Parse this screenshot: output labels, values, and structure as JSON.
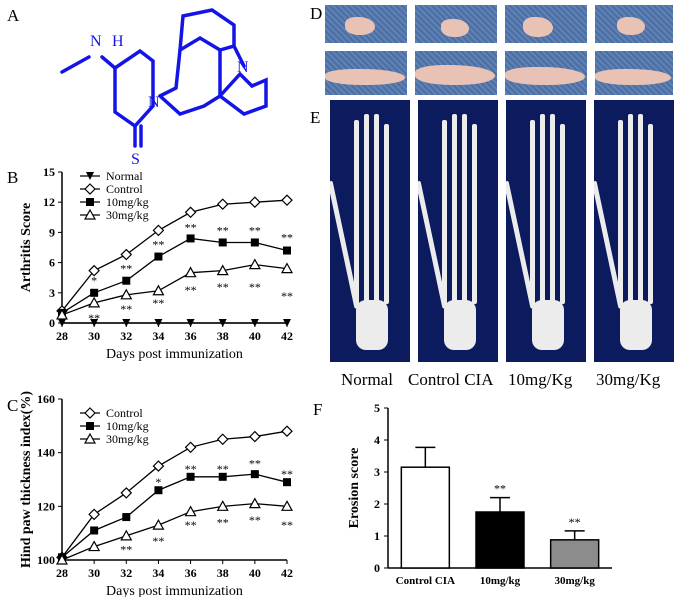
{
  "panels": {
    "A": "A",
    "B": "B",
    "C": "C",
    "D": "D",
    "E": "E",
    "F": "F"
  },
  "molecule": {
    "nh": "N",
    "h": "H",
    "n1": "N",
    "n2": "N",
    "s": "S"
  },
  "colors": {
    "bond": "#1414e6",
    "xray_bg": "#0c1a5e",
    "paw_bg": "#4a6fa6",
    "cia_bar": "#ffffff",
    "mid_bar": "#000000",
    "high_bar": "#8c8c8c"
  },
  "xray_labels": [
    "Normal",
    "Control CIA",
    "10mg/Kg",
    "30mg/Kg"
  ],
  "chart_data": [
    {
      "type": "line",
      "ylabel": "Arthritis Score",
      "xlabel": "Days post immunization",
      "xlim": [
        28,
        42
      ],
      "ylim": [
        0,
        15
      ],
      "xticks": [
        "28",
        "30",
        "32",
        "34",
        "36",
        "38",
        "40",
        "42"
      ],
      "yticks": [
        "0",
        "3",
        "6",
        "9",
        "12",
        "15"
      ],
      "legend_position": "top-left",
      "series": [
        {
          "name": "Normal",
          "marker": "triangle-down",
          "x": [
            28,
            30,
            32,
            34,
            36,
            38,
            40,
            42
          ],
          "y": [
            0,
            0,
            0,
            0,
            0,
            0,
            0,
            0
          ]
        },
        {
          "name": "Control",
          "marker": "diamond",
          "x": [
            28,
            30,
            32,
            34,
            36,
            38,
            40,
            42
          ],
          "y": [
            1.2,
            5.2,
            6.8,
            9.2,
            11.0,
            11.8,
            12.0,
            12.2
          ]
        },
        {
          "name": "10mg/kg",
          "marker": "square",
          "x": [
            28,
            30,
            32,
            34,
            36,
            38,
            40,
            42
          ],
          "y": [
            1.0,
            3.0,
            4.2,
            6.6,
            8.4,
            8.0,
            8.0,
            7.2
          ]
        },
        {
          "name": "30mg/kg",
          "marker": "triangle-up",
          "x": [
            28,
            30,
            32,
            34,
            36,
            38,
            40,
            42
          ],
          "y": [
            0.8,
            2.0,
            2.8,
            3.2,
            5.0,
            5.2,
            5.8,
            5.4
          ]
        }
      ],
      "annotations": [
        {
          "x": 30,
          "y": 4.2,
          "text": "*"
        },
        {
          "x": 30,
          "y": 0.5,
          "text": "**"
        },
        {
          "x": 32,
          "y": 5.4,
          "text": "**"
        },
        {
          "x": 32,
          "y": 1.4,
          "text": "**"
        },
        {
          "x": 34,
          "y": 7.8,
          "text": "**"
        },
        {
          "x": 34,
          "y": 2.0,
          "text": "**"
        },
        {
          "x": 36,
          "y": 9.5,
          "text": "**"
        },
        {
          "x": 36,
          "y": 3.3,
          "text": "**"
        },
        {
          "x": 38,
          "y": 9.2,
          "text": "**"
        },
        {
          "x": 38,
          "y": 3.6,
          "text": "**"
        },
        {
          "x": 40,
          "y": 9.2,
          "text": "**"
        },
        {
          "x": 40,
          "y": 3.6,
          "text": "**"
        },
        {
          "x": 42,
          "y": 8.5,
          "text": "**"
        },
        {
          "x": 42,
          "y": 2.7,
          "text": "**"
        }
      ]
    },
    {
      "type": "line",
      "ylabel": "Hind paw thickness index(%)",
      "xlabel": "Days post immunization",
      "xlim": [
        28,
        42
      ],
      "ylim": [
        100,
        160
      ],
      "xticks": [
        "28",
        "30",
        "32",
        "34",
        "36",
        "38",
        "40",
        "42"
      ],
      "yticks": [
        "100",
        "120",
        "140",
        "160"
      ],
      "legend_position": "top-left",
      "series": [
        {
          "name": "Control",
          "marker": "diamond",
          "x": [
            28,
            30,
            32,
            34,
            36,
            38,
            40,
            42
          ],
          "y": [
            101,
            117,
            125,
            135,
            142,
            145,
            146,
            148
          ]
        },
        {
          "name": "10mg/kg",
          "marker": "square",
          "x": [
            28,
            30,
            32,
            34,
            36,
            38,
            40,
            42
          ],
          "y": [
            101,
            111,
            116,
            126,
            131,
            131,
            132,
            129
          ]
        },
        {
          "name": "30mg/kg",
          "marker": "triangle-up",
          "x": [
            28,
            30,
            32,
            34,
            36,
            38,
            40,
            42
          ],
          "y": [
            100,
            105,
            109,
            113,
            118,
            120,
            121,
            120
          ]
        }
      ],
      "annotations": [
        {
          "x": 32,
          "y": 104,
          "text": "**"
        },
        {
          "x": 34,
          "y": 129,
          "text": "*"
        },
        {
          "x": 34,
          "y": 107,
          "text": "**"
        },
        {
          "x": 36,
          "y": 134,
          "text": "**"
        },
        {
          "x": 36,
          "y": 113,
          "text": "**"
        },
        {
          "x": 38,
          "y": 134,
          "text": "**"
        },
        {
          "x": 38,
          "y": 114,
          "text": "**"
        },
        {
          "x": 40,
          "y": 136,
          "text": "**"
        },
        {
          "x": 40,
          "y": 115,
          "text": "**"
        },
        {
          "x": 42,
          "y": 132,
          "text": "**"
        },
        {
          "x": 42,
          "y": 113,
          "text": "**"
        }
      ]
    },
    {
      "type": "bar",
      "ylabel": "Erosion score",
      "categories": [
        "Control CIA",
        "10mg/kg",
        "30mg/kg"
      ],
      "values": [
        3.15,
        1.75,
        0.88
      ],
      "errors": [
        0.62,
        0.45,
        0.28
      ],
      "ylim": [
        0,
        5
      ],
      "yticks": [
        "0",
        "1",
        "2",
        "3",
        "4",
        "5"
      ],
      "annotations": [
        "",
        "**",
        "**"
      ]
    }
  ]
}
